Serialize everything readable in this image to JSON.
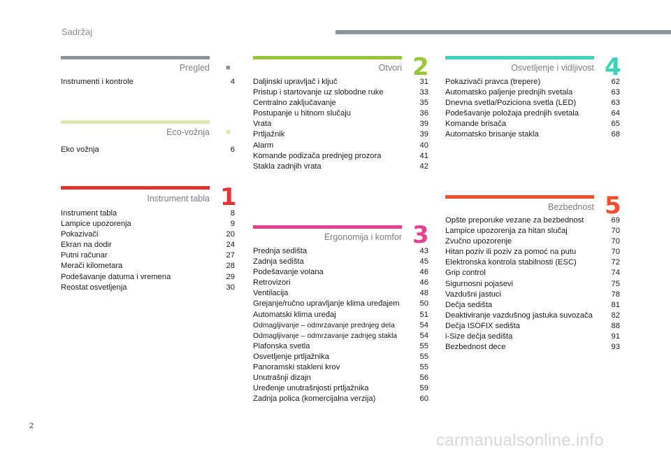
{
  "header": {
    "title": "Sadržaj"
  },
  "page_number": "2",
  "watermark": "carmanualsonline.info",
  "sections": {
    "pregled": {
      "title": "Pregled",
      "number": "",
      "color": "#8f949a",
      "entries": [
        {
          "t": "Instrumenti i kontrole",
          "p": "4"
        }
      ]
    },
    "eco": {
      "title": "Eco-vožnja",
      "number": "",
      "color": "#dfe6b4",
      "entries": [
        {
          "t": "Eko vožnja",
          "p": "6"
        }
      ]
    },
    "instrument": {
      "title": "Instrument tabla",
      "number": "1",
      "color": "#e63335",
      "entries": [
        {
          "t": "Instrument tabla",
          "p": "8"
        },
        {
          "t": "Lampice upozorenja",
          "p": "9"
        },
        {
          "t": "Pokazivači",
          "p": "20"
        },
        {
          "t": "Ekran na dodir",
          "p": "24"
        },
        {
          "t": "Putni računar",
          "p": "27"
        },
        {
          "t": "Merači kilometara",
          "p": "28"
        },
        {
          "t": "Podešavanje datuma i vremena",
          "p": "29"
        },
        {
          "t": "Reostat osvetljenja",
          "p": "30"
        }
      ]
    },
    "otvori": {
      "title": "Otvori",
      "number": "2",
      "color": "#9bc53d",
      "entries": [
        {
          "t": "Daljinski upravljač i ključ",
          "p": "31"
        },
        {
          "t": "Pristup i startovanje uz slobodne ruke",
          "p": "33"
        },
        {
          "t": "Centralno zaključavanje",
          "p": "35"
        },
        {
          "t": "Postupanje u hitnom slučaju",
          "p": "36"
        },
        {
          "t": "Vrata",
          "p": "39"
        },
        {
          "t": "Prtljažnik",
          "p": "39"
        },
        {
          "t": "Alarm",
          "p": "40"
        },
        {
          "t": "Komande podizača prednjeg prozora",
          "p": "41"
        },
        {
          "t": "Stakla zadnjih vrata",
          "p": "42"
        }
      ]
    },
    "ergonomija": {
      "title": "Ergonomija i komfor",
      "number": "3",
      "color": "#e4418f",
      "entries": [
        {
          "t": "Prednja sedišta",
          "p": "43"
        },
        {
          "t": "Zadnja sedišta",
          "p": "45"
        },
        {
          "t": "Podešavanje volana",
          "p": "46"
        },
        {
          "t": "Retrovizori",
          "p": "46"
        },
        {
          "t": "Ventilacija",
          "p": "48"
        },
        {
          "t": "Grejanje/ručno upravljanje klima uređajem",
          "p": "50"
        },
        {
          "t": "Automatski klima uređaj",
          "p": "51"
        },
        {
          "t": "Odmagljivanje – odmrzavanje prednjeg dela",
          "p": "54",
          "small": true
        },
        {
          "t": "Odmagljivanje – odmrzavanje zadnjeg stakla",
          "p": "54",
          "small": true
        },
        {
          "t": "Plafonska svetla",
          "p": "55"
        },
        {
          "t": "Osvetljenje prtljažnika",
          "p": "55"
        },
        {
          "t": "Panoramski stakleni krov",
          "p": "55"
        },
        {
          "t": "Unutrašnji dizajn",
          "p": "56"
        },
        {
          "t": "Uređenje unutrašnjosti prtljažnika",
          "p": "59"
        },
        {
          "t": "Zadnja polica (komercijalna verzija)",
          "p": "60"
        }
      ]
    },
    "osvetljenje": {
      "title": "Osvetljenje i vidljivost",
      "number": "4",
      "color": "#3ed2b8",
      "entries": [
        {
          "t": "Pokazivači pravca (trepere)",
          "p": "62"
        },
        {
          "t": "Automatsko paljenje prednjih svetala",
          "p": "63"
        },
        {
          "t": "Dnevna svetla/Poziciona svetla (LED)",
          "p": "63"
        },
        {
          "t": "Podešavanje položaja prednjih svetala",
          "p": "64"
        },
        {
          "t": "Komande brisača",
          "p": "65"
        },
        {
          "t": "Automatsko brisanje stakla",
          "p": "68"
        }
      ]
    },
    "bezbednost": {
      "title": "Bezbednost",
      "number": "5",
      "color": "#f0502d",
      "entries": [
        {
          "t": "Opšte preporuke vezane za bezbednost",
          "p": "69"
        },
        {
          "t": "Lampice upozorenja za hitan slučaj",
          "p": "70"
        },
        {
          "t": "Zvučno upozorenje",
          "p": "70"
        },
        {
          "t": "Hitan poziv ili poziv za pomoć na putu",
          "p": "70"
        },
        {
          "t": "Elektronska kontrola stabilnosti (ESC)",
          "p": "72"
        },
        {
          "t": "Grip control",
          "p": "74"
        },
        {
          "t": "Sigurnosni pojasevi",
          "p": "75"
        },
        {
          "t": "Vazdušni jastuci",
          "p": "78"
        },
        {
          "t": "Dečja sedišta",
          "p": "81"
        },
        {
          "t": "Deaktiviranje vazdušnog jastuka suvozača",
          "p": "82"
        },
        {
          "t": "Dečja ISOFIX sedišta",
          "p": "88"
        },
        {
          "t": "i-Size dečja sedišta",
          "p": "91"
        },
        {
          "t": "Bezbednost dece",
          "p": "93"
        }
      ]
    }
  }
}
